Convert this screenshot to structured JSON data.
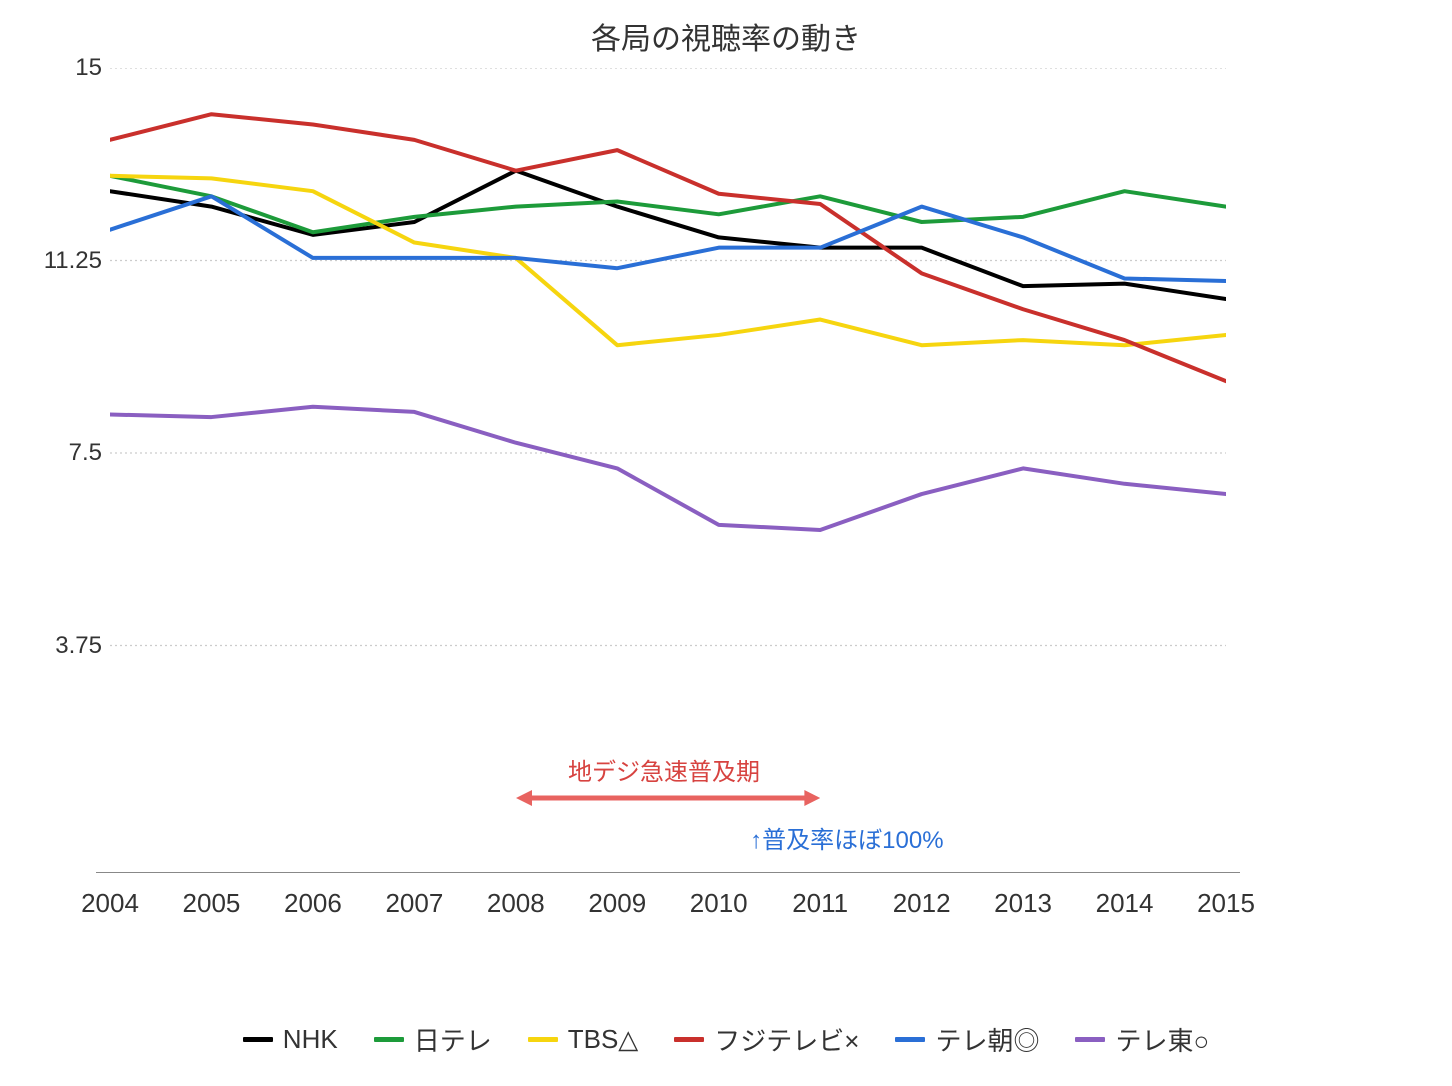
{
  "chart": {
    "type": "line",
    "title": "各局の視聴率の動き",
    "title_fontsize": 30,
    "background_color": "#ffffff",
    "grid_color": "#cccccc",
    "grid_dash": "2,3",
    "axis_color": "#888888",
    "xlim": [
      2004,
      2015
    ],
    "ylim": [
      0,
      15
    ],
    "yticks": [
      3.75,
      7.5,
      11.25,
      15
    ],
    "ytick_labels": [
      "3.75",
      "7.5",
      "11.25",
      "15"
    ],
    "xticks": [
      2004,
      2005,
      2006,
      2007,
      2008,
      2009,
      2010,
      2011,
      2012,
      2013,
      2014,
      2015
    ],
    "xtick_labels": [
      "2004",
      "2005",
      "2006",
      "2007",
      "2008",
      "2009",
      "2010",
      "2011",
      "2012",
      "2013",
      "2014",
      "2015"
    ],
    "label_fontsize": 26,
    "line_width": 4,
    "series": [
      {
        "name": "NHK",
        "color": "#000000",
        "values": [
          12.6,
          12.3,
          11.75,
          12.0,
          13.0,
          12.3,
          11.7,
          11.5,
          11.5,
          10.75,
          10.8,
          10.5
        ]
      },
      {
        "name": "日テレ",
        "color": "#1d9b3a",
        "values": [
          12.9,
          12.5,
          11.8,
          12.1,
          12.3,
          12.4,
          12.15,
          12.5,
          12.0,
          12.1,
          12.6,
          12.3
        ]
      },
      {
        "name": "TBS△",
        "color": "#f6d50f",
        "values": [
          12.9,
          12.85,
          12.6,
          11.6,
          11.3,
          9.6,
          9.8,
          10.1,
          9.6,
          9.7,
          9.6,
          9.8
        ]
      },
      {
        "name": "フジテレビ×",
        "color": "#c9302c",
        "values": [
          13.6,
          14.1,
          13.9,
          13.6,
          13.0,
          13.4,
          12.55,
          12.35,
          11.0,
          10.3,
          9.7,
          8.9
        ]
      },
      {
        "name": "テレ朝◎",
        "color": "#2a6fd6",
        "values": [
          11.85,
          12.5,
          11.3,
          11.3,
          11.3,
          11.1,
          11.5,
          11.5,
          12.3,
          11.7,
          10.9,
          10.85
        ]
      },
      {
        "name": "テレ東○",
        "color": "#8a5fc1",
        "values": [
          8.25,
          8.2,
          8.4,
          8.3,
          7.7,
          7.2,
          6.1,
          6.0,
          6.7,
          7.2,
          6.9,
          6.7
        ]
      }
    ],
    "annotations": {
      "arrow_label": "地デジ急速普及期",
      "arrow_color": "#e86360",
      "arrow_from_x": 2008,
      "arrow_to_x": 2011,
      "arrow_y_offset": 790,
      "sub_label": "↑普及率ほぼ100%",
      "sub_label_color": "#2a6fd6"
    }
  }
}
